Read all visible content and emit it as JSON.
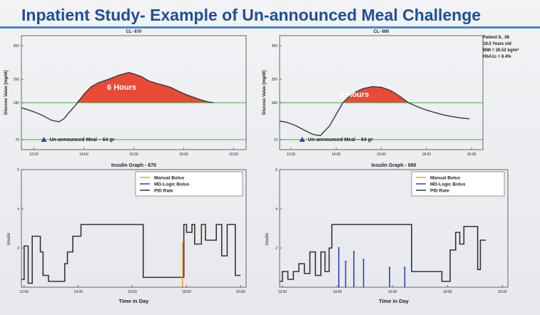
{
  "slide_title": "Inpatient Study- Example of Un-announced Meal Challenge",
  "patient_info": [
    "Patient IL_08",
    "18.5 Years old",
    "BMI = 26.52 kg/m²",
    "HbA1c = 8.4%"
  ],
  "colors": {
    "title": "#1e4f96",
    "rule": "#4e86c6",
    "glucose_fill": "#e84a35",
    "threshold": "#39b04a",
    "meal_marker": "#1f4e9c",
    "manual_bolus": "#f0a030",
    "md_bolus": "#2d3fc4",
    "pid": "#333333"
  },
  "chart_data": [
    {
      "type": "area",
      "title": "CL- 670",
      "ylabel": "Glucose Value [mg/dl]",
      "xlabel": "",
      "xlim": [
        11.5,
        20.5
      ],
      "ylim": [
        40,
        380
      ],
      "yticks": [
        70,
        180,
        250,
        350
      ],
      "ytick_labels": [
        "70",
        "180",
        "250",
        "350"
      ],
      "xticks": [
        12,
        14,
        16,
        18,
        20
      ],
      "xtick_labels": [
        "12:00",
        "14:00",
        "16:00",
        "18:00",
        "20:00"
      ],
      "thresholds": [
        70,
        180
      ],
      "series": [
        {
          "x": [
            11.5,
            11.8,
            12.1,
            12.4,
            12.7,
            13.0,
            13.2,
            13.4,
            13.7,
            14.0,
            14.3,
            14.6,
            15.0,
            15.4,
            15.8,
            16.0,
            16.3,
            16.6,
            16.9,
            17.2,
            17.5,
            17.8,
            18.1,
            18.4,
            18.7,
            19.0,
            19.2
          ],
          "y": [
            165,
            158,
            150,
            140,
            128,
            123,
            132,
            150,
            175,
            205,
            228,
            240,
            250,
            262,
            270,
            266,
            258,
            245,
            238,
            232,
            225,
            214,
            204,
            196,
            188,
            182,
            180
          ]
        }
      ],
      "annotation_text": "6 Hours",
      "meal": {
        "x": 12.4,
        "label": "Un-announced Meal – 64 gr"
      }
    },
    {
      "type": "area",
      "title": "CL- 690",
      "ylabel": "Glucose Value [mg/dl]",
      "xlabel": "",
      "xlim": [
        11.5,
        20.5
      ],
      "ylim": [
        40,
        380
      ],
      "yticks": [
        70,
        180,
        250,
        350
      ],
      "ytick_labels": [
        "70",
        "180",
        "250",
        "350"
      ],
      "xticks": [
        12,
        14,
        16,
        18,
        20
      ],
      "xtick_labels": [
        "12:00",
        "14:00",
        "16:00",
        "18:00",
        "20:00"
      ],
      "thresholds": [
        70,
        180
      ],
      "series": [
        {
          "x": [
            11.5,
            11.8,
            12.2,
            12.6,
            13.0,
            13.3,
            13.7,
            14.0,
            14.3,
            14.6,
            14.9,
            15.2,
            15.6,
            16.0,
            16.4,
            16.8,
            17.2,
            17.6,
            18.0,
            18.4,
            18.8,
            19.2,
            19.6,
            19.9
          ],
          "y": [
            125,
            122,
            112,
            98,
            85,
            82,
            110,
            145,
            180,
            200,
            213,
            222,
            228,
            226,
            217,
            200,
            180,
            168,
            158,
            150,
            143,
            138,
            134,
            132
          ]
        }
      ],
      "annotation_text": "3 Hours",
      "meal": {
        "x": 12.5,
        "label": "Un-announced Meal – 64 gr"
      }
    },
    {
      "type": "line",
      "title": "Insulin Graph - 670",
      "xlabel": "Time in Day",
      "ylabel": "Insulin",
      "xlim": [
        11.9,
        20.2
      ],
      "ylim": [
        0,
        6
      ],
      "yticks": [
        2,
        4,
        6
      ],
      "ytick_labels": [
        "2",
        "4",
        "6"
      ],
      "xticks": [
        12,
        14,
        16,
        18,
        20
      ],
      "xtick_labels": [
        "12:00",
        "14:00",
        "16:00",
        "18:00",
        "20:00"
      ],
      "legend": [
        "Manual Bolus",
        "MD-Logic Bolus",
        "PID Rate"
      ],
      "pid": {
        "x": [
          11.9,
          12.0,
          12.0,
          12.15,
          12.15,
          12.3,
          12.3,
          12.6,
          12.6,
          12.7,
          12.7,
          12.9,
          12.9,
          13.5,
          13.5,
          13.6,
          13.6,
          13.8,
          13.8,
          14.1,
          14.1,
          16.4,
          16.4,
          17.9,
          17.9,
          18.0,
          18.0,
          18.2,
          18.2,
          18.3,
          18.3,
          18.55,
          18.55,
          18.7,
          18.7,
          19.1,
          19.1,
          19.3,
          19.3,
          19.5,
          19.5,
          19.8,
          19.8,
          20.0
        ],
        "y": [
          0.4,
          0.4,
          2.1,
          2.1,
          0.2,
          0.2,
          2.6,
          2.6,
          1.8,
          1.8,
          0.6,
          0.6,
          0.3,
          0.3,
          1.2,
          1.2,
          1.8,
          1.8,
          2.6,
          2.6,
          3.2,
          3.2,
          0.5,
          0.5,
          3.2,
          3.2,
          2.8,
          2.8,
          3.2,
          3.2,
          2.2,
          2.2,
          3.2,
          3.2,
          2.4,
          2.4,
          3.2,
          3.2,
          1.6,
          1.6,
          3.2,
          3.2,
          0.6,
          0.6
        ]
      },
      "manual_bolus": [
        {
          "x": 17.85,
          "y": 2.3
        }
      ],
      "md_bolus": []
    },
    {
      "type": "line",
      "title": "Insulin Graph - 690",
      "xlabel": "Time in Day",
      "ylabel": "Insulin",
      "xlim": [
        11.9,
        20.2
      ],
      "ylim": [
        0,
        6
      ],
      "yticks": [
        2,
        4,
        6
      ],
      "ytick_labels": [
        "2",
        "4",
        "6"
      ],
      "xticks": [
        12,
        14,
        16,
        18,
        20
      ],
      "xtick_labels": [
        "12:00",
        "14:00",
        "16:00",
        "18:00",
        "20:00"
      ],
      "legend": [
        "Manual Bolus",
        "MD-Logic Bolus",
        "PID Rate"
      ],
      "pid": {
        "x": [
          11.9,
          12.0,
          12.0,
          12.2,
          12.2,
          12.4,
          12.4,
          12.6,
          12.6,
          12.8,
          12.8,
          13.0,
          13.0,
          13.2,
          13.2,
          13.4,
          13.4,
          13.55,
          13.55,
          13.7,
          13.7,
          13.8,
          13.8,
          16.7,
          16.7,
          17.8,
          17.8,
          18.1,
          18.1,
          18.3,
          18.3,
          18.45,
          18.45,
          18.6,
          18.6,
          19.1,
          19.1,
          19.2,
          19.2,
          19.4
        ],
        "y": [
          0.3,
          0.3,
          0.8,
          0.8,
          0.4,
          0.4,
          0.8,
          0.8,
          1.2,
          1.2,
          0.7,
          0.7,
          1.8,
          1.8,
          0.6,
          0.6,
          1.8,
          1.8,
          0.8,
          0.8,
          2.0,
          2.0,
          3.2,
          3.2,
          0.8,
          0.8,
          0.3,
          0.3,
          1.9,
          1.9,
          2.8,
          2.8,
          2.2,
          2.2,
          3.1,
          3.1,
          0.9,
          0.9,
          2.4,
          2.4
        ]
      },
      "manual_bolus": [],
      "md_bolus": [
        {
          "x": 14.05,
          "y": 2.0
        },
        {
          "x": 14.3,
          "y": 1.3
        },
        {
          "x": 14.6,
          "y": 1.8
        },
        {
          "x": 14.95,
          "y": 1.4
        },
        {
          "x": 15.9,
          "y": 1.0
        },
        {
          "x": 16.45,
          "y": 1.0
        }
      ]
    }
  ]
}
